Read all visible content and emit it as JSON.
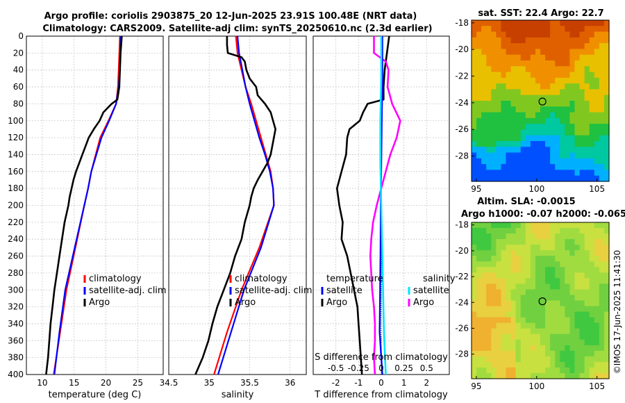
{
  "title": {
    "line1": "Argo profile: coriolis 2903875_20 12-Jun-2025 23.91S 100.48E (NRT data)",
    "line2": "Climatology: CARS2009. Satellite-adj clim: synTS_20250610.nc (2.3d earlier)"
  },
  "colors": {
    "climatology": "#ff0000",
    "satellite_clim": "#0000ff",
    "argo": "#000000",
    "salinity_diff_satellite": "#00e5ff",
    "salinity_diff_argo": "#ff00ff",
    "grid": "#c8c8c8"
  },
  "chart_data": [
    {
      "type": "line",
      "id": "temperature",
      "xlabel": "temperature (deg C)",
      "ylabel": "",
      "xlim": [
        7.5,
        29.0
      ],
      "ylim": [
        400,
        0
      ],
      "xticks": [
        "10",
        "15",
        "20",
        "25"
      ],
      "xtick_values": [
        10,
        15,
        20,
        25
      ],
      "yticks": [
        "0",
        "20",
        "40",
        "60",
        "80",
        "100",
        "120",
        "140",
        "160",
        "180",
        "200",
        "220",
        "240",
        "260",
        "280",
        "300",
        "320",
        "340",
        "360",
        "380",
        "400"
      ],
      "grid": true,
      "legend": {
        "position": "bottom-right",
        "entries": [
          "climatology",
          "satellite-adj. clim",
          "Argo"
        ]
      },
      "series": [
        {
          "name": "climatology",
          "depth": [
            0,
            20,
            40,
            60,
            80,
            100,
            120,
            140,
            160,
            180,
            200,
            250,
            300,
            350,
            400
          ],
          "values": [
            22.2,
            22.1,
            22.0,
            21.9,
            21.6,
            20.4,
            19.1,
            18.4,
            17.7,
            17.2,
            16.6,
            15.2,
            13.8,
            12.8,
            11.8
          ]
        },
        {
          "name": "satellite-adj. clim",
          "depth": [
            0,
            20,
            40,
            60,
            80,
            100,
            120,
            140,
            160,
            180,
            200,
            250,
            300,
            350,
            400
          ],
          "values": [
            22.3,
            22.3,
            22.2,
            22.0,
            21.6,
            20.5,
            19.3,
            18.5,
            17.7,
            17.2,
            16.6,
            15.1,
            13.6,
            12.7,
            11.9
          ]
        },
        {
          "name": "Argo",
          "depth": [
            0,
            10,
            20,
            40,
            60,
            75,
            80,
            90,
            100,
            110,
            120,
            130,
            140,
            150,
            160,
            170,
            180,
            190,
            200,
            220,
            240,
            260,
            280,
            300,
            320,
            340,
            360,
            380,
            400
          ],
          "values": [
            22.5,
            22.4,
            22.3,
            22.2,
            22.1,
            21.8,
            20.9,
            19.6,
            19.0,
            18.1,
            17.3,
            16.8,
            16.3,
            15.8,
            15.3,
            14.9,
            14.6,
            14.3,
            14.1,
            13.5,
            13.1,
            12.7,
            12.3,
            11.9,
            11.6,
            11.3,
            11.1,
            10.9,
            10.6
          ]
        }
      ]
    },
    {
      "type": "line",
      "id": "salinity",
      "xlabel": "salinity",
      "ylabel": "",
      "xlim": [
        34.5,
        36.2
      ],
      "ylim": [
        400,
        0
      ],
      "xticks": [
        "34.5",
        "35",
        "35.5",
        "36"
      ],
      "xtick_values": [
        34.5,
        35.0,
        35.5,
        36.0
      ],
      "grid": true,
      "legend": {
        "position": "bottom-right",
        "entries": [
          "climatology",
          "satellite-adj. clim",
          "Argo"
        ]
      },
      "series": [
        {
          "name": "climatology",
          "depth": [
            0,
            20,
            40,
            60,
            80,
            100,
            120,
            140,
            160,
            180,
            200,
            250,
            300,
            350,
            400
          ],
          "values": [
            35.33,
            35.35,
            35.4,
            35.45,
            35.52,
            35.58,
            35.64,
            35.7,
            35.76,
            35.79,
            35.8,
            35.62,
            35.4,
            35.22,
            35.06
          ]
        },
        {
          "name": "satellite-adj. clim",
          "depth": [
            0,
            20,
            40,
            60,
            80,
            100,
            120,
            140,
            160,
            180,
            200,
            250,
            300,
            350,
            400
          ],
          "values": [
            35.35,
            35.37,
            35.41,
            35.45,
            35.5,
            35.56,
            35.62,
            35.69,
            35.75,
            35.79,
            35.8,
            35.64,
            35.43,
            35.27,
            35.11
          ]
        },
        {
          "name": "Argo",
          "depth": [
            0,
            10,
            20,
            25,
            30,
            40,
            50,
            60,
            70,
            80,
            90,
            100,
            110,
            120,
            130,
            140,
            150,
            160,
            170,
            180,
            190,
            200,
            220,
            240,
            260,
            280,
            300,
            320,
            340,
            360,
            380,
            400
          ],
          "values": [
            35.22,
            35.22,
            35.23,
            35.4,
            35.44,
            35.46,
            35.5,
            35.58,
            35.6,
            35.69,
            35.76,
            35.79,
            35.82,
            35.8,
            35.78,
            35.76,
            35.72,
            35.66,
            35.6,
            35.55,
            35.52,
            35.5,
            35.44,
            35.4,
            35.32,
            35.26,
            35.18,
            35.1,
            35.04,
            34.99,
            34.92,
            34.83
          ]
        }
      ]
    },
    {
      "type": "line",
      "id": "difference",
      "xlabel": "T difference from climatology",
      "xlabel_top": "S difference from climatology",
      "xlim": [
        -3.0,
        3.0
      ],
      "xlim_salinity": [
        -0.75,
        0.75
      ],
      "ylim": [
        400,
        0
      ],
      "xticks": [
        "-2",
        "-1",
        "0",
        "1",
        "2"
      ],
      "xtick_values": [
        -2,
        -1,
        0,
        1,
        2
      ],
      "xticks_salinity": [
        "-0.5",
        "-0.25",
        "0",
        "0.25",
        "0.5"
      ],
      "xtick_values_salinity": [
        -0.5,
        -0.25,
        0,
        0.25,
        0.5
      ],
      "grid": true,
      "legend": {
        "temperature_header": "temperature",
        "salinity_header": "salinity",
        "entries": [
          "satellite",
          "Argo",
          "satellite",
          "Argo"
        ]
      },
      "series": [
        {
          "name": "temperature satellite",
          "depth": [
            0,
            50,
            100,
            150,
            200,
            250,
            300,
            350,
            400
          ],
          "values": [
            0.05,
            0.05,
            0.02,
            0.0,
            -0.02,
            -0.03,
            -0.05,
            -0.07,
            0.05
          ]
        },
        {
          "name": "temperature Argo",
          "depth": [
            0,
            20,
            40,
            60,
            75,
            80,
            90,
            100,
            110,
            120,
            140,
            160,
            180,
            200,
            220,
            240,
            260,
            280,
            300,
            320,
            340,
            360,
            380,
            400
          ],
          "values": [
            0.35,
            0.25,
            0.15,
            0.1,
            0.1,
            -0.6,
            -0.8,
            -0.95,
            -1.4,
            -1.5,
            -1.55,
            -1.75,
            -1.95,
            -1.85,
            -1.7,
            -1.75,
            -1.5,
            -1.35,
            -1.2,
            -1.05,
            -1.0,
            -0.95,
            -0.9,
            -0.85
          ]
        },
        {
          "name": "salinity satellite",
          "depth": [
            0,
            50,
            100,
            150,
            200,
            250,
            300,
            350,
            400
          ],
          "values": [
            0.0,
            0.0,
            -0.01,
            -0.01,
            0.0,
            0.01,
            0.02,
            0.03,
            0.05
          ]
        },
        {
          "name": "salinity Argo",
          "depth": [
            0,
            20,
            30,
            40,
            60,
            80,
            100,
            120,
            140,
            160,
            180,
            200,
            220,
            240,
            260,
            280,
            300,
            320,
            340,
            360,
            380,
            400
          ],
          "values": [
            -0.08,
            -0.08,
            0.05,
            0.08,
            0.07,
            0.12,
            0.21,
            0.17,
            0.1,
            0.05,
            0.0,
            -0.05,
            -0.09,
            -0.11,
            -0.12,
            -0.11,
            -0.1,
            -0.08,
            -0.07,
            -0.07,
            -0.08,
            -0.07
          ]
        }
      ]
    },
    {
      "type": "heatmap",
      "id": "sst_map",
      "title": "sat. SST: 22.4 Argo: 22.7",
      "xticks": [
        "95",
        "100",
        "105"
      ],
      "xtick_values": [
        95,
        100,
        105
      ],
      "yticks": [
        "-18",
        "-20",
        "-22",
        "-24",
        "-26",
        "-28"
      ],
      "ytick_values": [
        -18,
        -20,
        -22,
        -24,
        -26,
        -28
      ],
      "xlim": [
        94.6,
        106.0
      ],
      "ylim": [
        -29.9,
        -17.8
      ],
      "marker": {
        "lon": 100.48,
        "lat": -23.91
      },
      "colorscale": [
        "#0050ff",
        "#00b0ff",
        "#00c8a0",
        "#20c040",
        "#80c820",
        "#e8c000",
        "#f09000",
        "#e06000",
        "#c84000"
      ],
      "value_range": [
        19.5,
        25.5
      ]
    },
    {
      "type": "heatmap",
      "id": "sla_map",
      "title": "Altim. SLA: -0.0015",
      "subtitle": "Argo h1000: -0.07 h2000: -0.065",
      "xticks": [
        "95",
        "100",
        "105"
      ],
      "xtick_values": [
        95,
        100,
        105
      ],
      "yticks": [
        "-18",
        "-20",
        "-22",
        "-24",
        "-26",
        "-28"
      ],
      "ytick_values": [
        -18,
        -20,
        -22,
        -24,
        -26,
        -28
      ],
      "xlim": [
        94.6,
        106.0
      ],
      "ylim": [
        -29.9,
        -17.8
      ],
      "marker": {
        "lon": 100.48,
        "lat": -23.91
      },
      "colorscale": [
        "#40c840",
        "#70d040",
        "#a0dc40",
        "#c8e040",
        "#e8d040",
        "#f0b030"
      ],
      "value_range": [
        -0.1,
        0.15
      ]
    }
  ],
  "credit": "©IMOS 17-Jun-2025 11:41:30"
}
